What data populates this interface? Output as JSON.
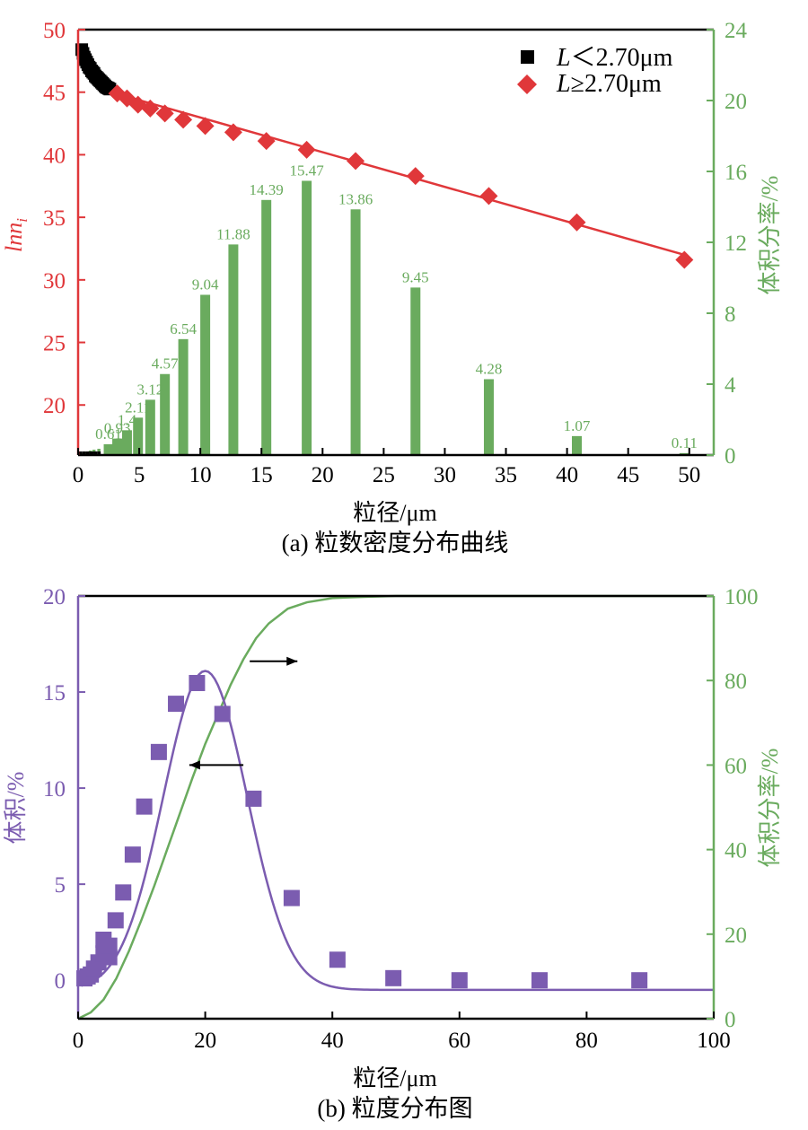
{
  "colors": {
    "red": "#e0373a",
    "green": "#6aab5e",
    "purple": "#7b5cb0",
    "black": "#000000"
  },
  "chart_data": [
    {
      "type": "line+bar",
      "caption": "(a) 粒数密度分布曲线",
      "xlabel": "粒径/μm",
      "ylabel_left": "lnn",
      "ylabel_left_sub": "i",
      "ylabel_right": "体积分率/%",
      "xlim": [
        0,
        52
      ],
      "ylim_left": [
        16,
        50
      ],
      "ylim_right": [
        0,
        24
      ],
      "xticks": [
        "0",
        "5",
        "10",
        "15",
        "20",
        "25",
        "30",
        "35",
        "40",
        "45",
        "50"
      ],
      "yticks_left": [
        "20",
        "25",
        "30",
        "35",
        "40",
        "45",
        "50"
      ],
      "yticks_right": [
        "0",
        "4",
        "8",
        "12",
        "16",
        "20",
        "24"
      ],
      "legend": [
        {
          "label_italic": "L",
          "label_rest": "＜2.70μm",
          "marker": "square",
          "color": "#000000"
        },
        {
          "label_italic": "L",
          "label_rest": "≥2.70μm",
          "marker": "diamond",
          "color": "#e0373a"
        }
      ],
      "legend_position": "top-right",
      "bars": {
        "x": [
          0.4,
          0.7,
          1.0,
          1.3,
          1.7,
          2.5,
          3.2,
          4.0,
          4.9,
          5.9,
          7.1,
          8.6,
          10.4,
          12.7,
          15.4,
          18.7,
          22.7,
          27.6,
          33.6,
          40.8,
          49.6
        ],
        "values": [
          0.1,
          0.2,
          0.25,
          0.3,
          0.35,
          0.61,
          0.93,
          1.4,
          2.11,
          3.12,
          4.57,
          6.54,
          9.04,
          11.88,
          14.39,
          15.47,
          13.86,
          9.45,
          4.28,
          1.07,
          0.11
        ],
        "labels": [
          "",
          "",
          "",
          "",
          "",
          "0.61",
          "0.93",
          "1.4",
          "2.11",
          "3.12",
          "4.57",
          "6.54",
          "9.04",
          "11.88",
          "14.39",
          "15.47",
          "13.86",
          "9.45",
          "4.28",
          "1.07",
          "0.11"
        ]
      },
      "series_small": {
        "x": [
          0.3,
          0.4,
          0.5,
          0.6,
          0.7,
          0.8,
          0.9,
          1.0,
          1.1,
          1.2,
          1.3,
          1.4,
          1.5,
          1.6,
          1.7,
          1.8,
          1.9,
          2.0,
          2.1,
          2.2,
          2.3,
          2.4,
          2.5,
          2.6
        ],
        "y": [
          48.4,
          48.1,
          47.8,
          47.6,
          47.4,
          47.2,
          47.0,
          46.9,
          46.7,
          46.6,
          46.5,
          46.3,
          46.2,
          46.1,
          46.0,
          45.9,
          45.8,
          45.7,
          45.6,
          45.5,
          45.4,
          45.35,
          45.3,
          45.25
        ]
      },
      "series_large": {
        "x": [
          3.2,
          4.0,
          4.9,
          5.9,
          7.1,
          8.6,
          10.4,
          12.7,
          15.4,
          18.7,
          22.7,
          27.6,
          33.6,
          40.8,
          49.6
        ],
        "y": [
          44.9,
          44.5,
          44.0,
          43.7,
          43.3,
          42.8,
          42.3,
          41.8,
          41.1,
          40.4,
          39.5,
          38.3,
          36.7,
          34.6,
          31.6
        ]
      },
      "fit_line": {
        "x": [
          2.7,
          49.6
        ],
        "y": [
          45.0,
          32.0
        ]
      }
    },
    {
      "type": "scatter+line",
      "caption": "(b) 粒度分布图",
      "xlabel": "粒径/μm",
      "ylabel_left": "体积/%",
      "ylabel_right": "体积分率/%",
      "xlim": [
        0,
        100
      ],
      "ylim_left": [
        -2,
        20
      ],
      "ylim_right": [
        0,
        100
      ],
      "xticks": [
        "0",
        "20",
        "40",
        "60",
        "80",
        "100"
      ],
      "yticks_left": [
        "0",
        "5",
        "10",
        "15",
        "20"
      ],
      "yticks_right": [
        "0",
        "20",
        "40",
        "60",
        "80",
        "100"
      ],
      "points": {
        "x": [
          1.0,
          1.5,
          2.0,
          2.5,
          3.2,
          4.0,
          4.9,
          4.0,
          4.9,
          5.9,
          7.1,
          8.6,
          10.4,
          12.7,
          15.4,
          18.7,
          22.7,
          27.6,
          33.6,
          40.8,
          49.6,
          60.0,
          72.6,
          88.3
        ],
        "y": [
          0.1,
          0.2,
          0.3,
          0.61,
          0.93,
          1.4,
          1.2,
          2.11,
          1.8,
          3.12,
          4.57,
          6.54,
          9.04,
          11.88,
          14.39,
          15.47,
          13.86,
          9.45,
          4.28,
          1.07,
          0.11,
          0.0,
          0.0,
          0.0
        ]
      },
      "fit_curve": {
        "type": "gaussian",
        "amplitude": 16.6,
        "center": 20.0,
        "sigma": 6.6,
        "offset": -0.5
      },
      "cumulative": {
        "x": [
          0,
          2,
          4,
          6,
          8,
          10,
          12,
          14,
          16,
          18,
          20,
          22,
          24,
          26,
          28,
          30,
          33,
          36,
          40,
          45,
          50,
          100
        ],
        "y": [
          0,
          1.5,
          4.5,
          9.5,
          16,
          23.5,
          31.5,
          40,
          48.5,
          57,
          65,
          72,
          79,
          85,
          90,
          93.5,
          97,
          98.5,
          99.5,
          99.8,
          100,
          100
        ]
      },
      "arrows": [
        {
          "from_x": 27,
          "to_x": 34.5,
          "y_left": 16.6,
          "direction": "right"
        },
        {
          "from_x": 26,
          "to_x": 17.5,
          "y_left": 11.2,
          "direction": "left"
        }
      ]
    }
  ]
}
